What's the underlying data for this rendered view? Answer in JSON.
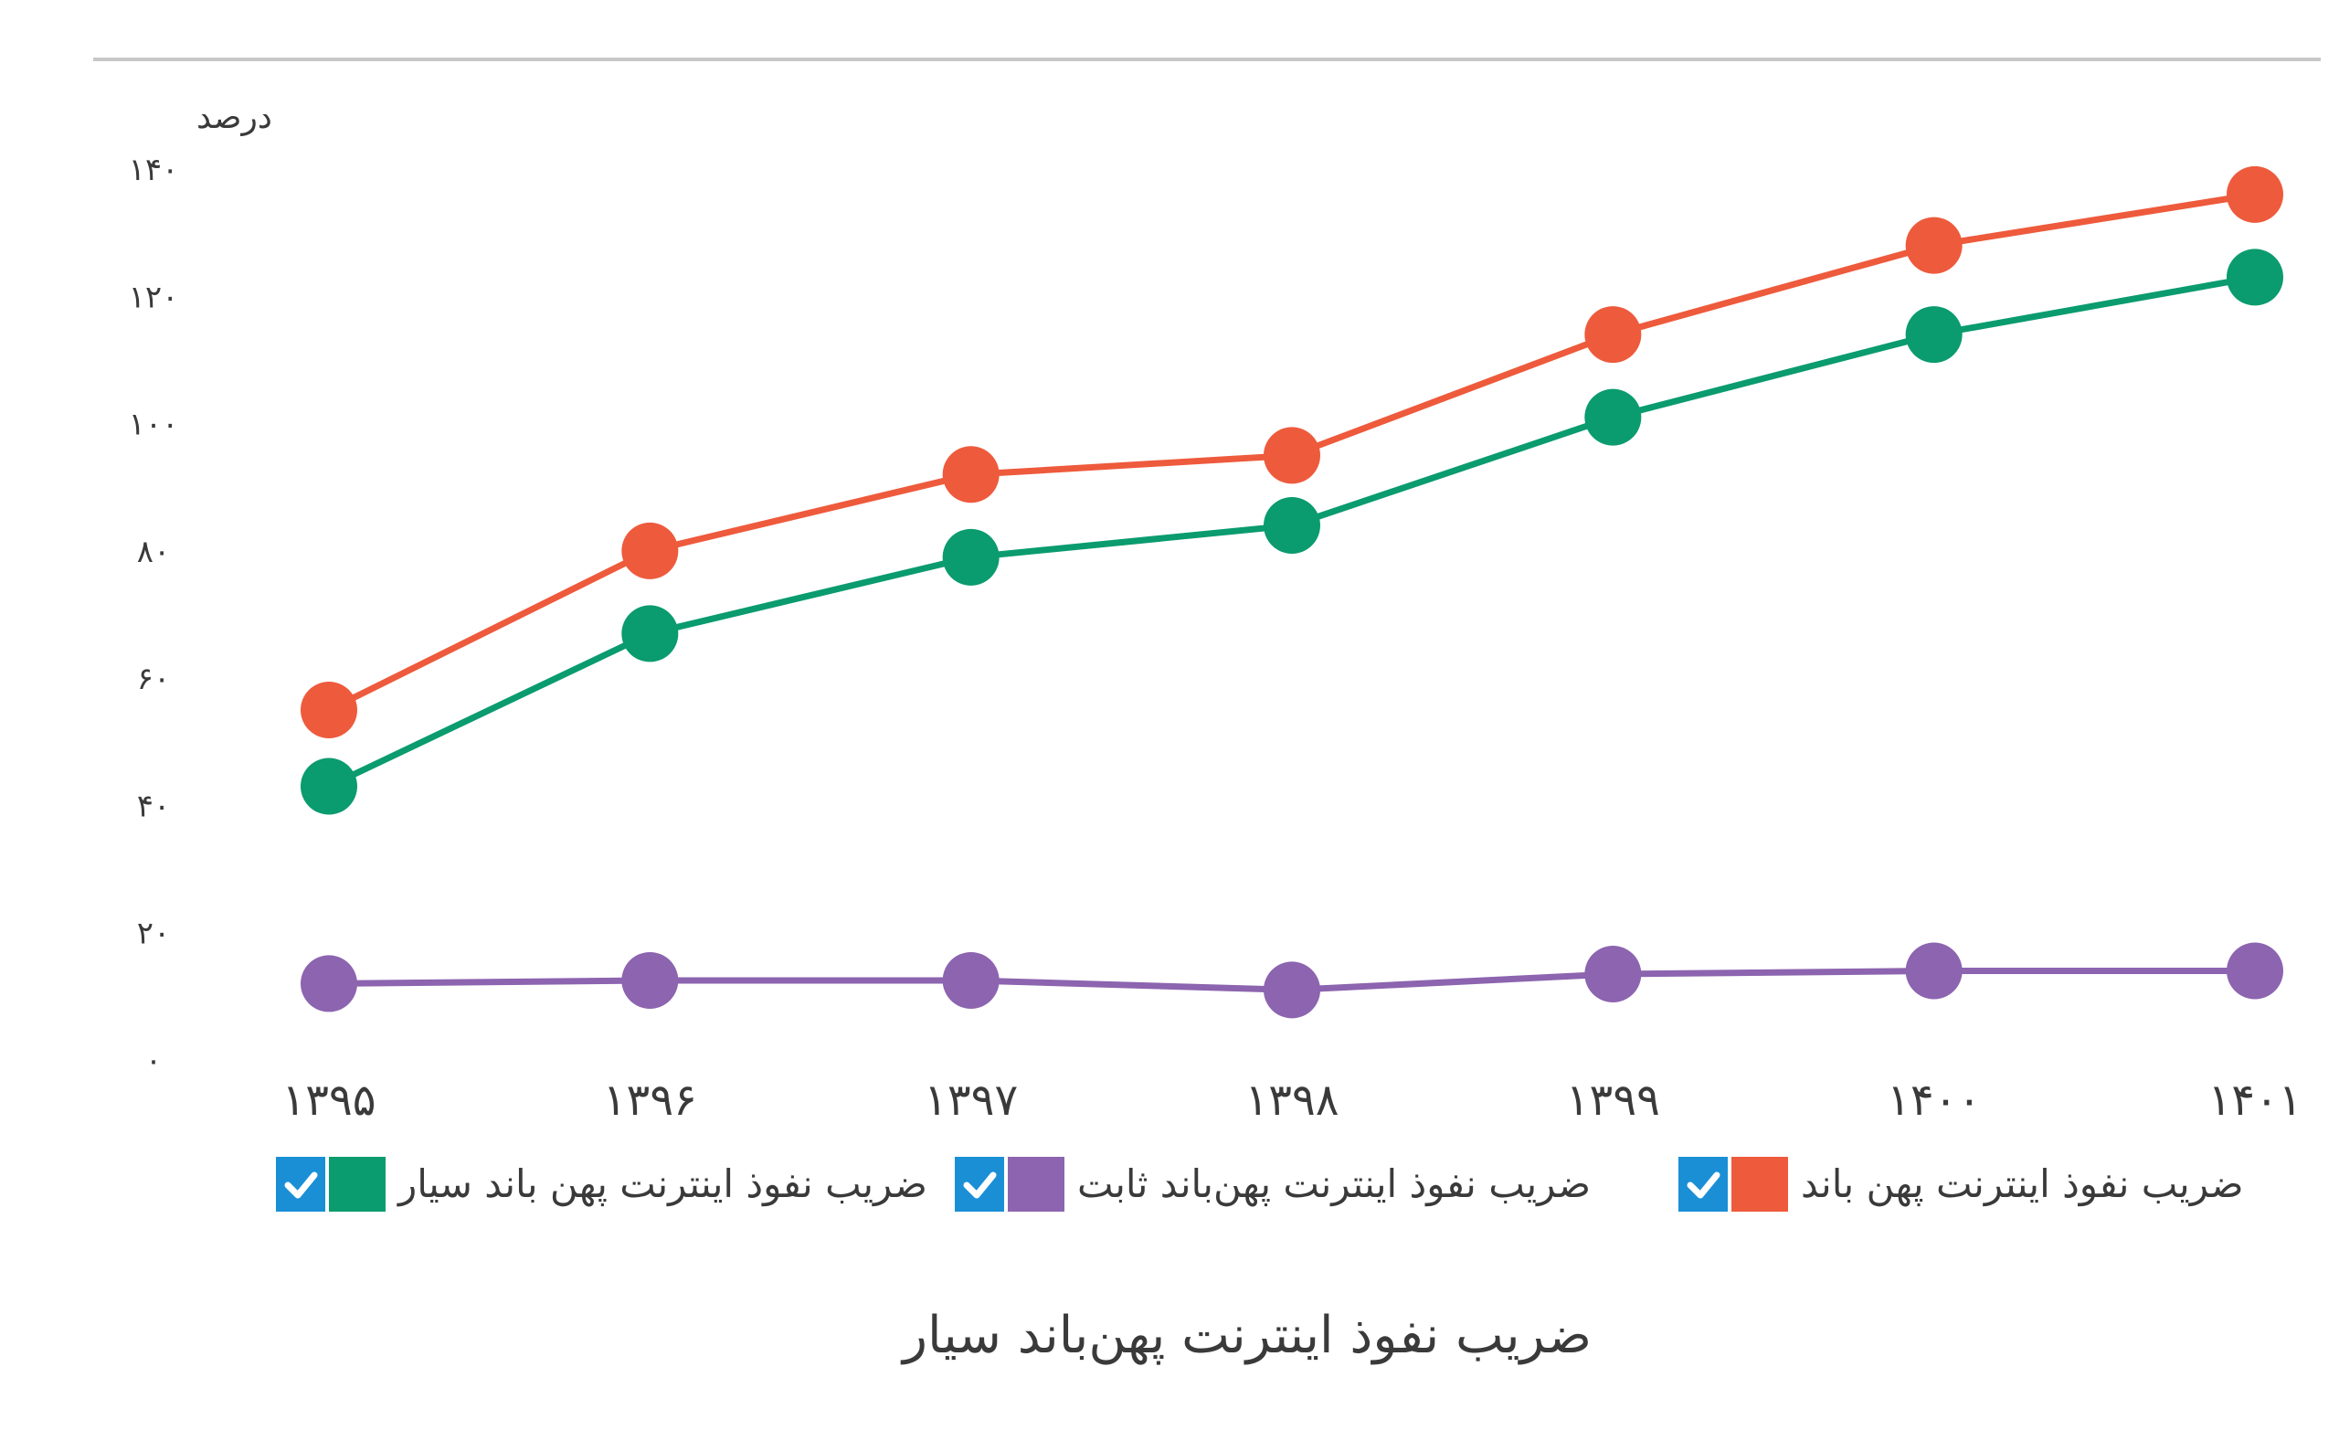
{
  "chart_data": {
    "type": "line",
    "title": "ضریب نفوذ اینترنت پهن‌باند سیار",
    "ylabel": "درصد",
    "xlabel": "",
    "ylim": [
      0,
      140
    ],
    "y_ticks": [
      "۰",
      "۲۰",
      "۴۰",
      "۶۰",
      "۸۰",
      "۱۰۰",
      "۱۲۰",
      "۱۴۰"
    ],
    "categories": [
      "۱۳۹۵",
      "۱۳۹۶",
      "۱۳۹۷",
      "۱۳۹۸",
      "۱۳۹۹",
      "۱۴۰۰",
      "۱۴۰۱"
    ],
    "grid": false,
    "legend_position": "bottom",
    "series": [
      {
        "name": "ضریب نفوذ اینترنت پهن باند",
        "color": "#ee5a3c",
        "values": [
          55,
          80,
          92,
          95,
          114,
          128,
          136
        ]
      },
      {
        "name": "ضریب نفوذ اینترنت پهن‌باند ثابت",
        "color": "#8c64af",
        "values": [
          12,
          12.5,
          12.5,
          11,
          13.5,
          14,
          14
        ]
      },
      {
        "name": "ضریب نفوذ اینترنت پهن باند سیار",
        "color": "#0a9b6e",
        "values": [
          43,
          67,
          79,
          84,
          101,
          114,
          123
        ]
      }
    ],
    "checkbox_color": "#1a8fd6",
    "axis_line_color": "#c8c8c8"
  }
}
